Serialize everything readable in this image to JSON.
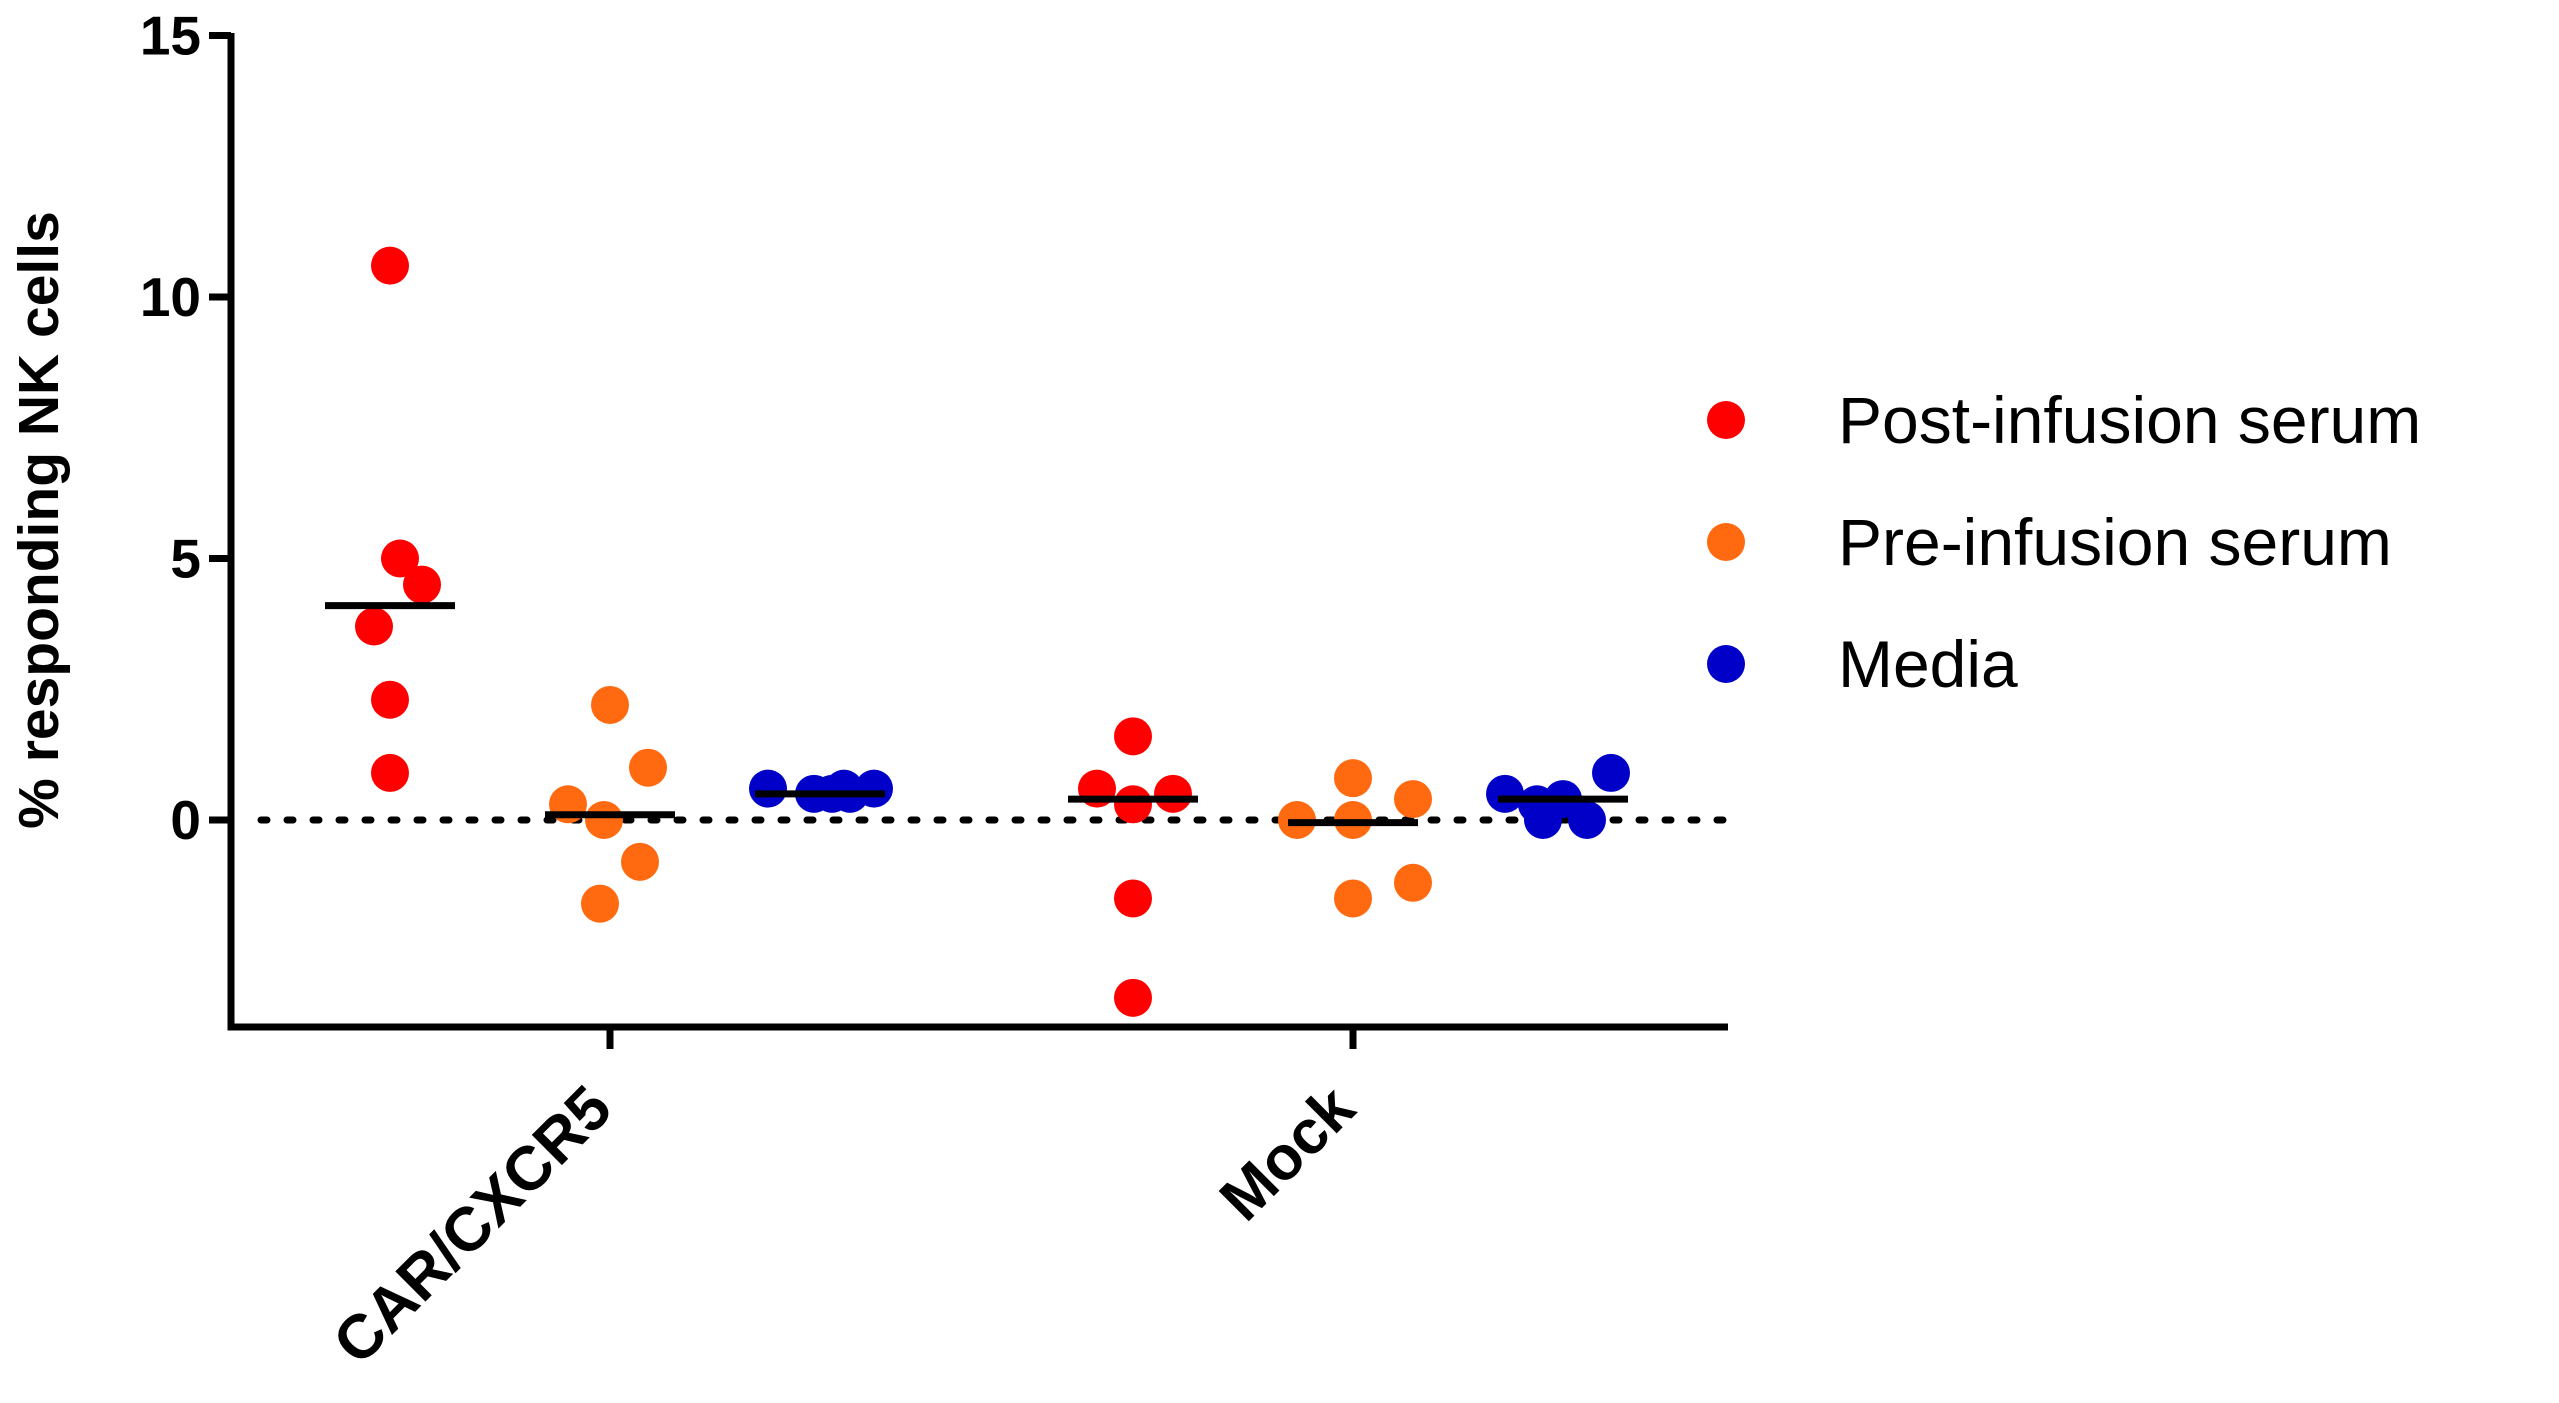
{
  "chart_data": {
    "type": "scatter",
    "ylabel": "% responding NK cells",
    "xlabel": "",
    "ylim": [
      -4,
      15
    ],
    "yticks": [
      0,
      5,
      10,
      15
    ],
    "categories": [
      "CAR/CXCR5",
      "Mock"
    ],
    "reference_line": {
      "y": 0,
      "style": "dotted"
    },
    "legend_position": "right",
    "series": [
      {
        "name": "Post-infusion serum",
        "color": "#ff0000",
        "values": [
          [
            10.6,
            5.0,
            4.5,
            3.7,
            2.3,
            0.9
          ],
          [
            1.6,
            0.6,
            0.5,
            0.3,
            -1.5,
            -3.4
          ]
        ],
        "median": [
          4.1,
          0.4
        ]
      },
      {
        "name": "Pre-infusion serum",
        "color": "#ff6a10",
        "values": [
          [
            2.2,
            1.0,
            0.3,
            0.0,
            -0.8,
            -1.6
          ],
          [
            0.8,
            0.4,
            0.0,
            0.0,
            -1.2,
            -1.5
          ]
        ],
        "median": [
          0.1,
          -0.05
        ]
      },
      {
        "name": "Media",
        "color": "#0000c8",
        "values": [
          [
            0.6,
            0.5,
            0.5,
            0.6,
            0.5,
            0.6
          ],
          [
            0.9,
            0.5,
            0.3,
            0.0,
            0.0,
            0.4
          ]
        ],
        "median": [
          0.5,
          0.4
        ]
      }
    ]
  }
}
